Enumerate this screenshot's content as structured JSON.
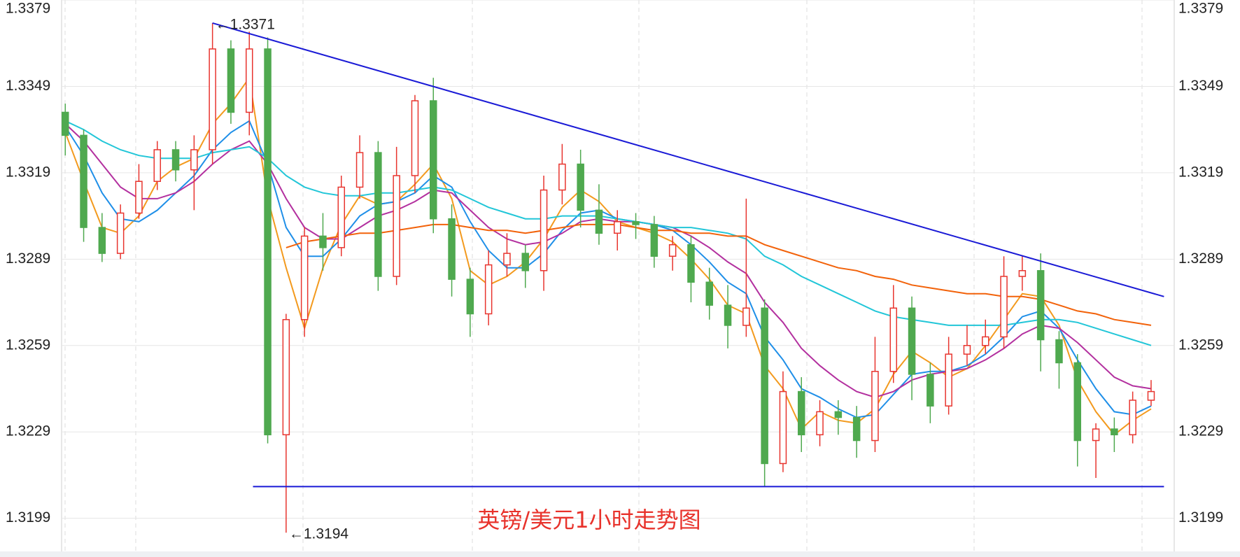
{
  "chart_data": {
    "type": "candlestick",
    "title": "英镑/美元1小时走势图",
    "ylim": [
      1.3187,
      1.3379
    ],
    "yticks": [
      1.3199,
      1.3229,
      1.3259,
      1.3289,
      1.3319,
      1.3349,
      1.3379
    ],
    "grid": true,
    "up_color": "#e8352f",
    "down_color": "#4fa94f",
    "open": [
      1.334,
      1.3332,
      1.33,
      1.3291,
      1.3305,
      1.3316,
      1.3327,
      1.332,
      1.3327,
      1.3362,
      1.334,
      1.3362,
      1.3228,
      1.3268,
      1.3297,
      1.3293,
      1.3314,
      1.3326,
      1.3283,
      1.3318,
      1.3344,
      1.3303,
      1.3282,
      1.327,
      1.3287,
      1.3291,
      1.3285,
      1.3313,
      1.3322,
      1.3306,
      1.3298,
      1.3302,
      1.3301,
      1.329,
      1.3294,
      1.3281,
      1.3273,
      1.3266,
      1.3272,
      1.3218,
      1.3243,
      1.3228,
      1.3236,
      1.3234,
      1.3226,
      1.325,
      1.3272,
      1.3249,
      1.3238,
      1.3256,
      1.3259,
      1.3262,
      1.3283,
      1.3285,
      1.3261,
      1.3253,
      1.3226,
      1.323,
      1.3228,
      1.324
    ],
    "high": [
      1.3343,
      1.3334,
      1.3305,
      1.3308,
      1.3322,
      1.333,
      1.333,
      1.3332,
      1.3371,
      1.3365,
      1.3368,
      1.3366,
      1.327,
      1.33,
      1.3305,
      1.3318,
      1.3332,
      1.333,
      1.3328,
      1.3346,
      1.3352,
      1.3308,
      1.3286,
      1.3292,
      1.3298,
      1.3294,
      1.3318,
      1.3329,
      1.3327,
      1.3315,
      1.3306,
      1.3305,
      1.3304,
      1.3297,
      1.3297,
      1.3286,
      1.328,
      1.331,
      1.3275,
      1.325,
      1.3248,
      1.324,
      1.324,
      1.3238,
      1.3262,
      1.328,
      1.3276,
      1.3253,
      1.3262,
      1.3266,
      1.3268,
      1.329,
      1.329,
      1.3291,
      1.3264,
      1.3256,
      1.3232,
      1.3234,
      1.3243,
      1.3247
    ],
    "low": [
      1.3325,
      1.3295,
      1.3288,
      1.3289,
      1.3303,
      1.3313,
      1.3316,
      1.3306,
      1.3322,
      1.3336,
      1.3332,
      1.3225,
      1.3194,
      1.3262,
      1.3285,
      1.329,
      1.331,
      1.3278,
      1.328,
      1.3312,
      1.3298,
      1.3276,
      1.3262,
      1.3266,
      1.3283,
      1.3279,
      1.3278,
      1.3308,
      1.33,
      1.3294,
      1.3292,
      1.3296,
      1.3286,
      1.3285,
      1.3274,
      1.3268,
      1.3258,
      1.3262,
      1.321,
      1.3215,
      1.3222,
      1.3224,
      1.3228,
      1.322,
      1.3222,
      1.3246,
      1.324,
      1.3232,
      1.3235,
      1.3252,
      1.3256,
      1.3258,
      1.3278,
      1.325,
      1.3244,
      1.3217,
      1.3213,
      1.3222,
      1.3225,
      1.3238
    ],
    "close": [
      1.3332,
      1.33,
      1.3291,
      1.3305,
      1.3316,
      1.3327,
      1.332,
      1.3327,
      1.3362,
      1.334,
      1.3362,
      1.3228,
      1.3268,
      1.3297,
      1.3293,
      1.3314,
      1.3326,
      1.3283,
      1.3318,
      1.3344,
      1.3303,
      1.3282,
      1.327,
      1.3287,
      1.3291,
      1.3285,
      1.3313,
      1.3322,
      1.3306,
      1.3298,
      1.3302,
      1.3301,
      1.329,
      1.3294,
      1.3281,
      1.3273,
      1.3266,
      1.3272,
      1.3218,
      1.3243,
      1.3228,
      1.3236,
      1.3234,
      1.3226,
      1.325,
      1.3272,
      1.3249,
      1.3238,
      1.3256,
      1.3259,
      1.3262,
      1.3283,
      1.3285,
      1.3261,
      1.3253,
      1.3226,
      1.323,
      1.3228,
      1.324,
      1.3243
    ],
    "ma_lines": [
      {
        "color": "#f39a1e",
        "values": [
          1.3333,
          1.3316,
          1.33,
          1.3298,
          1.3304,
          1.3316,
          1.3321,
          1.3324,
          1.3336,
          1.3343,
          1.3352,
          1.331,
          1.3286,
          1.3265,
          1.3286,
          1.3301,
          1.3311,
          1.3308,
          1.3309,
          1.3315,
          1.3322,
          1.331,
          1.3285,
          1.328,
          1.3283,
          1.3288,
          1.3296,
          1.3307,
          1.3313,
          1.3309,
          1.3302,
          1.33,
          1.3298,
          1.3295,
          1.3289,
          1.3282,
          1.3273,
          1.327,
          1.3252,
          1.3244,
          1.323,
          1.3236,
          1.3233,
          1.3232,
          1.3237,
          1.3249,
          1.3257,
          1.3253,
          1.3248,
          1.3251,
          1.3259,
          1.3268,
          1.3277,
          1.3276,
          1.3266,
          1.3247,
          1.3236,
          1.3228,
          1.3233,
          1.3237
        ]
      },
      {
        "color": "#1f8fe8",
        "values": [
          1.3335,
          1.3325,
          1.3312,
          1.3303,
          1.3302,
          1.3306,
          1.3312,
          1.3318,
          1.3327,
          1.3333,
          1.3337,
          1.3322,
          1.33,
          1.329,
          1.329,
          1.3296,
          1.3304,
          1.3308,
          1.3309,
          1.3312,
          1.3318,
          1.3314,
          1.3302,
          1.3292,
          1.3286,
          1.3286,
          1.3291,
          1.3299,
          1.3305,
          1.3306,
          1.3303,
          1.3302,
          1.3301,
          1.3299,
          1.3294,
          1.3288,
          1.3281,
          1.3277,
          1.3262,
          1.3254,
          1.3244,
          1.3241,
          1.3237,
          1.3234,
          1.3235,
          1.3242,
          1.3249,
          1.325,
          1.325,
          1.3252,
          1.3256,
          1.3262,
          1.3269,
          1.3271,
          1.3265,
          1.3254,
          1.3244,
          1.3236,
          1.3235,
          1.3238
        ]
      },
      {
        "color": "#b3309f",
        "values": [
          1.3336,
          1.333,
          1.3322,
          1.3314,
          1.331,
          1.331,
          1.3312,
          1.3316,
          1.3322,
          1.3327,
          1.333,
          1.3322,
          1.331,
          1.33,
          1.3296,
          1.3296,
          1.33,
          1.3304,
          1.3306,
          1.3309,
          1.3313,
          1.3312,
          1.3306,
          1.33,
          1.3296,
          1.3294,
          1.3295,
          1.3298,
          1.3302,
          1.3303,
          1.3302,
          1.3302,
          1.3301,
          1.33,
          1.3297,
          1.3293,
          1.3288,
          1.3284,
          1.3274,
          1.3267,
          1.3258,
          1.3252,
          1.3247,
          1.3243,
          1.3241,
          1.3243,
          1.3247,
          1.3249,
          1.325,
          1.3251,
          1.3254,
          1.3258,
          1.3263,
          1.3266,
          1.3265,
          1.326,
          1.3254,
          1.3248,
          1.3245,
          1.3244
        ]
      },
      {
        "color": "#22c6d8",
        "values": [
          1.3337,
          1.3334,
          1.333,
          1.3327,
          1.3325,
          1.3324,
          1.3324,
          1.3324,
          1.3326,
          1.3327,
          1.3328,
          1.3324,
          1.3318,
          1.3314,
          1.3312,
          1.3311,
          1.3311,
          1.3312,
          1.3312,
          1.3313,
          1.3314,
          1.3313,
          1.331,
          1.3307,
          1.3305,
          1.3303,
          1.3303,
          1.3304,
          1.3304,
          1.3304,
          1.3303,
          1.3302,
          1.3301,
          1.33,
          1.33,
          1.3299,
          1.3298,
          1.3296,
          1.329,
          1.3287,
          1.3283,
          1.328,
          1.3277,
          1.3274,
          1.3271,
          1.3269,
          1.3268,
          1.3267,
          1.3266,
          1.3266,
          1.3266,
          1.3266,
          1.3267,
          1.3268,
          1.3268,
          1.3267,
          1.3265,
          1.3263,
          1.3261,
          1.3259
        ]
      },
      {
        "color": "#f2620a",
        "values": [
          null,
          null,
          null,
          null,
          null,
          null,
          null,
          null,
          null,
          null,
          null,
          null,
          1.3293,
          1.3295,
          1.3296,
          1.3297,
          1.3298,
          1.3298,
          1.3299,
          1.33,
          1.3301,
          1.3301,
          1.33,
          1.3299,
          1.3299,
          1.3298,
          1.3299,
          1.33,
          1.3301,
          1.3301,
          1.3301,
          1.33,
          1.3299,
          1.3299,
          1.3298,
          1.3298,
          1.3297,
          1.3297,
          1.3294,
          1.3292,
          1.329,
          1.3288,
          1.3286,
          1.3285,
          1.3283,
          1.3282,
          1.328,
          1.3279,
          1.3278,
          1.3277,
          1.3277,
          1.3276,
          1.3276,
          1.3275,
          1.3273,
          1.3271,
          1.327,
          1.3268,
          1.3267,
          1.3266
        ]
      }
    ],
    "trend_lines": [
      {
        "color": "#1a1ad6",
        "from": [
          8,
          1.3371
        ],
        "to": [
          59.7,
          1.3276
        ]
      },
      {
        "color": "#1a1ad6",
        "from": [
          10.2,
          1.321
        ],
        "to": [
          59.7,
          1.321
        ]
      }
    ],
    "annotations": [
      {
        "index": 8,
        "value": 1.3371,
        "label": "←1.3371"
      },
      {
        "index": 12,
        "value": 1.3194,
        "label": "←1.3194"
      }
    ]
  }
}
